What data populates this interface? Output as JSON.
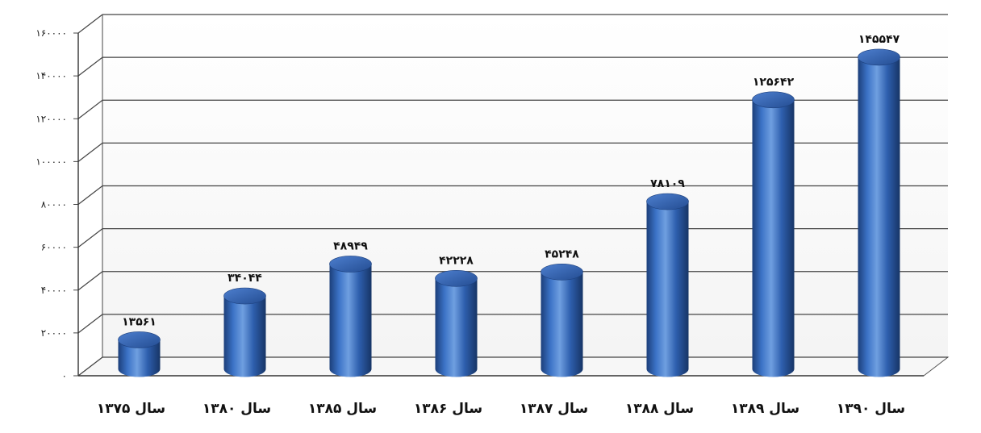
{
  "chart_data": {
    "type": "bar",
    "categories": [
      "سال ۱۳۷۵",
      "سال ۱۳۸۰",
      "سال ۱۳۸۵",
      "سال ۱۳۸۶",
      "سال ۱۳۸۷",
      "سال ۱۳۸۸",
      "سال ۱۳۸۹",
      "سال ۱۳۹۰"
    ],
    "values": [
      13561,
      34044,
      48949,
      42228,
      45248,
      78109,
      125642,
      145547
    ],
    "data_labels": [
      "۱۳۵۶۱",
      "۳۴۰۴۴",
      "۴۸۹۴۹",
      "۴۲۲۲۸",
      "۴۵۲۴۸",
      "۷۸۱۰۹",
      "۱۲۵۶۴۲",
      "۱۴۵۵۴۷"
    ],
    "yticks": [
      0,
      20000,
      40000,
      60000,
      80000,
      100000,
      120000,
      140000,
      160000
    ],
    "ytick_labels": [
      "۰",
      "۲۰۰۰۰",
      "۴۰۰۰۰",
      "۶۰۰۰۰",
      "۸۰۰۰۰",
      "۱۰۰۰۰۰",
      "۱۲۰۰۰۰",
      "۱۴۰۰۰۰",
      "۱۶۰۰۰۰"
    ],
    "ylim": [
      0,
      160000
    ],
    "title": "",
    "xlabel": "",
    "ylabel": "",
    "grid": true,
    "style": "3d-cylinder",
    "bar_color": "#2f62b0"
  }
}
